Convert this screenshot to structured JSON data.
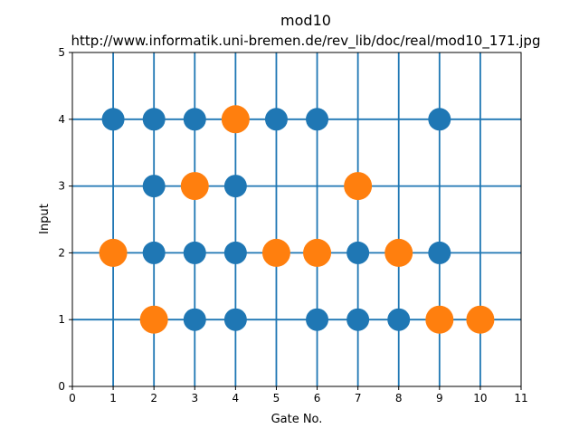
{
  "chart_data": {
    "type": "scatter",
    "title": "mod10",
    "subtitle": "http://www.informatik.uni-bremen.de/rev_lib/doc/real/mod10_171.jpg",
    "xlabel": "Gate No.",
    "ylabel": "Input",
    "xlim": [
      0,
      11
    ],
    "ylim": [
      0,
      5
    ],
    "x_ticks": [
      "0",
      "1",
      "2",
      "3",
      "4",
      "5",
      "6",
      "7",
      "8",
      "9",
      "10",
      "11"
    ],
    "y_ticks": [
      "0",
      "1",
      "2",
      "3",
      "4",
      "5"
    ],
    "gate_lines_x": [
      1,
      2,
      3,
      4,
      5,
      6,
      7,
      8,
      9,
      10
    ],
    "input_lines_y": [
      1,
      2,
      3,
      4
    ],
    "colors": {
      "lines": "#1f77b4",
      "control": "#1f77b4",
      "target": "#ff7f0e"
    },
    "series": [
      {
        "kind": "control",
        "color": "#1f77b4",
        "points": [
          [
            1,
            4
          ],
          [
            2,
            4
          ],
          [
            3,
            4
          ],
          [
            5,
            4
          ],
          [
            6,
            4
          ],
          [
            9,
            4
          ],
          [
            2,
            3
          ],
          [
            4,
            3
          ],
          [
            2,
            2
          ],
          [
            3,
            2
          ],
          [
            4,
            2
          ],
          [
            7,
            2
          ],
          [
            9,
            2
          ],
          [
            3,
            1
          ],
          [
            4,
            1
          ],
          [
            6,
            1
          ],
          [
            7,
            1
          ],
          [
            8,
            1
          ]
        ]
      },
      {
        "kind": "target",
        "color": "#ff7f0e",
        "points": [
          [
            4,
            4
          ],
          [
            3,
            3
          ],
          [
            7,
            3
          ],
          [
            1,
            2
          ],
          [
            5,
            2
          ],
          [
            6,
            2
          ],
          [
            8,
            2
          ],
          [
            2,
            1
          ],
          [
            9,
            1
          ],
          [
            10,
            1
          ]
        ]
      }
    ]
  }
}
